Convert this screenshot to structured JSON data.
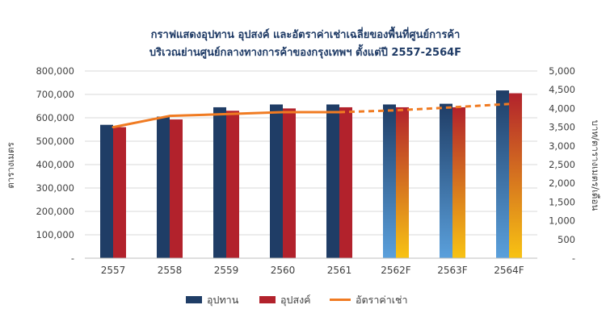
{
  "chart_data": {
    "type": "bar",
    "title_line1": "กราฟแสดงอุปทาน อุปสงค์ และอัตราค่าเช่าเฉลี่ยของพื้นที่ศูนย์การค้า",
    "title_line2": "บริเวณย่านศูนย์กลางทางการค้าของกรุงเทพฯ ตั้งแต่ปี 2557-2564F",
    "ylabel_left": "ตารางเมตร",
    "ylabel_right": "บาท/ตารางเมตร/เดือน",
    "categories": [
      "2557",
      "2558",
      "2559",
      "2560",
      "2561",
      "2562F",
      "2563F",
      "2564F"
    ],
    "forecast_from_index": 5,
    "ylim_left": [
      0,
      800000
    ],
    "yticks_left": [
      "-",
      "100,000",
      "200,000",
      "300,000",
      "400,000",
      "500,000",
      "600,000",
      "700,000",
      "800,000"
    ],
    "ylim_right": [
      0,
      5000
    ],
    "yticks_right": [
      "-",
      "500",
      "1,000",
      "1,500",
      "2,000",
      "2,500",
      "3,000",
      "3,500",
      "4,000",
      "4,500",
      "5,000"
    ],
    "grid": true,
    "legend_position": "bottom",
    "series": [
      {
        "name": "อุปทาน",
        "kind": "bar",
        "axis": "left",
        "color": "#1f3d66",
        "forecast_gradient": [
          "#1f3d66",
          "#5aa0dc"
        ],
        "values": [
          570000,
          605000,
          645000,
          657000,
          657000,
          657000,
          660000,
          717000
        ]
      },
      {
        "name": "อุปสงค์",
        "kind": "bar",
        "axis": "left",
        "color": "#b2222c",
        "forecast_gradient": [
          "#b2222c",
          "#f8c313"
        ],
        "values": [
          560000,
          593000,
          630000,
          640000,
          645000,
          645000,
          645000,
          705000
        ]
      },
      {
        "name": "อัตราค่าเช่า",
        "kind": "line",
        "axis": "right",
        "color": "#f07b22",
        "dashed_from_index": 4,
        "values": [
          3500,
          3800,
          3850,
          3900,
          3900,
          3950,
          4030,
          4120
        ]
      }
    ]
  }
}
